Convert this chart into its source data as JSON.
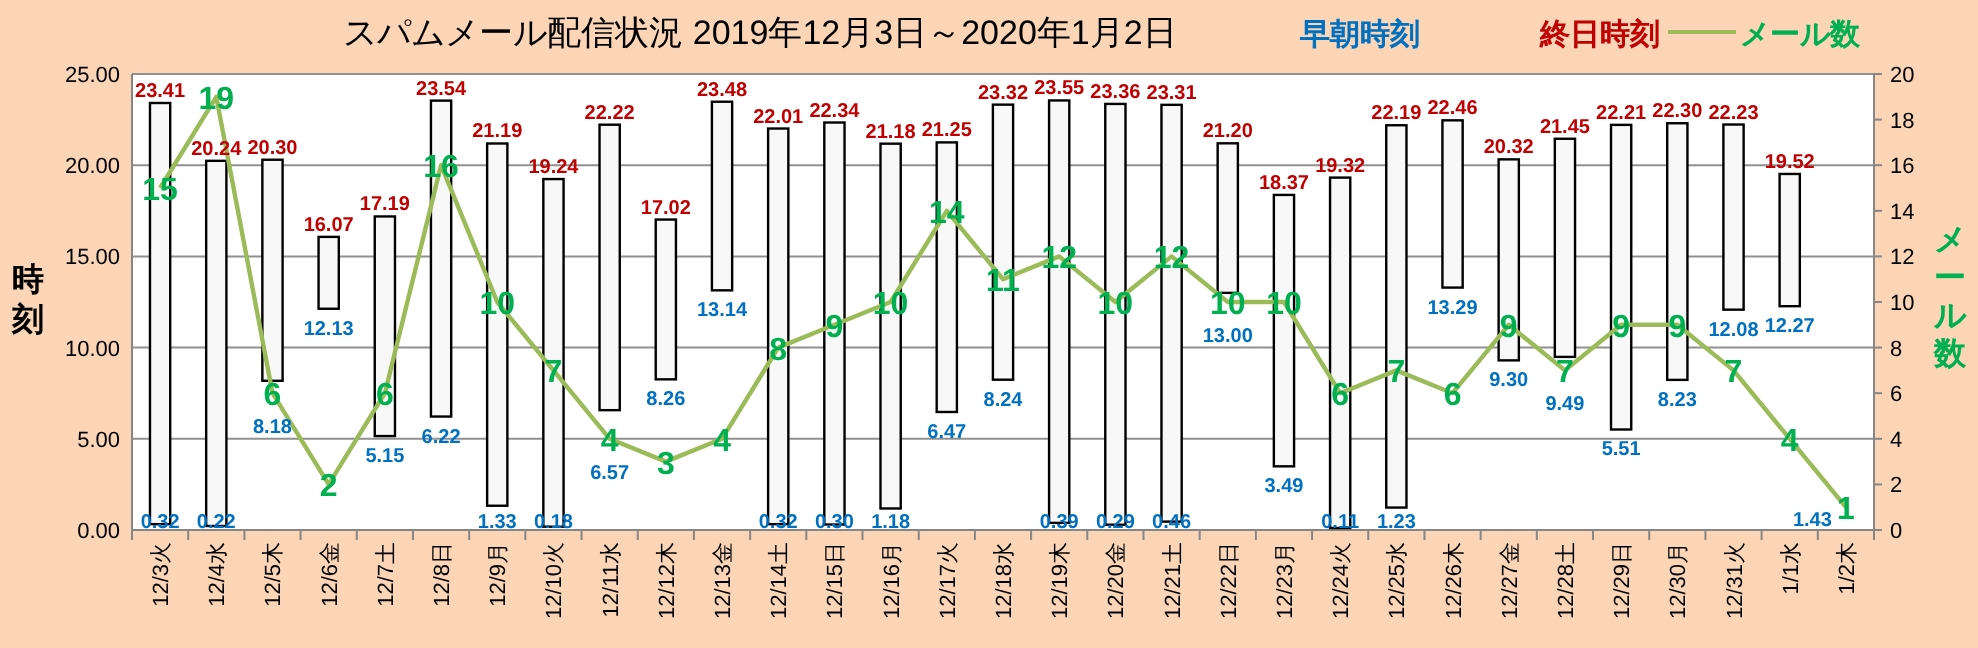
{
  "chart_data": {
    "type": "bar",
    "title": "スパムメール配信状況  2019年12月3日～2020年1月2日",
    "ylabel": "時刻",
    "y2label": "メール数",
    "categories": [
      "12/3火",
      "12/4水",
      "12/5木",
      "12/6金",
      "12/7土",
      "12/8日",
      "12/9月",
      "12/10火",
      "12/11水",
      "12/12木",
      "12/13金",
      "12/14土",
      "12/15日",
      "12/16月",
      "12/17火",
      "12/18水",
      "12/19木",
      "12/20金",
      "12/21土",
      "12/22日",
      "12/23月",
      "12/24火",
      "12/25水",
      "12/26木",
      "12/27金",
      "12/28土",
      "12/29日",
      "12/30月",
      "12/31火",
      "1/1水",
      "1/2木"
    ],
    "series": [
      {
        "color": "#f8f8f8",
        "base": [
          0.32,
          0.22,
          8.18,
          12.13,
          5.15,
          6.22,
          1.33,
          0.18,
          6.57,
          8.26,
          13.14,
          0.32,
          0.3,
          1.18,
          6.47,
          8.24,
          0.39,
          0.29,
          0.46,
          13.0,
          3.49,
          0.11,
          1.23,
          13.29,
          9.3,
          9.49,
          5.51,
          8.23,
          12.08,
          12.27,
          null
        ],
        "values": [
          23.09,
          20.02,
          12.12,
          3.94,
          12.04,
          17.32,
          19.86,
          19.06,
          15.65,
          8.76,
          10.34,
          21.69,
          22.04,
          20.0,
          14.78,
          15.08,
          23.16,
          23.07,
          22.85,
          8.2,
          14.88,
          19.21,
          20.96,
          9.17,
          11.02,
          11.96,
          16.7,
          14.07,
          10.15,
          7.25,
          null
        ]
      },
      {
        "type": "line",
        "name": "メール数",
        "color": "#9bbb59",
        "axis": "y2",
        "values": [
          15,
          19,
          6,
          2,
          6,
          16,
          10,
          7,
          4,
          3,
          4,
          8,
          9,
          10,
          14,
          11,
          12,
          10,
          12,
          10,
          10,
          6,
          7,
          6,
          9,
          7,
          9,
          9,
          7,
          4,
          1
        ],
        "data_labels": true
      }
    ],
    "annotations": [
      "早朝時刻",
      "終日時刻",
      {
        "text": "0.32",
        "x": "12/3火",
        "y": 0.32
      },
      {
        "text": "0.22",
        "x": "12/4水",
        "y": 0.22
      },
      {
        "text": "8.18",
        "x": "12/5木",
        "y": 8.18
      },
      {
        "text": "12.13",
        "x": "12/6金",
        "y": 12.13
      },
      {
        "text": "5.15",
        "x": "12/7土",
        "y": 5.15
      },
      {
        "text": "6.22",
        "x": "12/8日",
        "y": 6.22
      },
      {
        "text": "1.33",
        "x": "12/9月",
        "y": 1.33
      },
      {
        "text": "0.18",
        "x": "12/10火",
        "y": 0.18
      },
      {
        "text": "6.57",
        "x": "12/11水",
        "y": 6.57
      },
      {
        "text": "8.26",
        "x": "12/12木",
        "y": 8.26
      },
      {
        "text": "13.14",
        "x": "12/13金",
        "y": 13.14
      },
      {
        "text": "0.32",
        "x": "12/14土",
        "y": 0.32
      },
      {
        "text": "0.30",
        "x": "12/15日",
        "y": 0.3
      },
      {
        "text": "1.18",
        "x": "12/16月",
        "y": 1.18
      },
      {
        "text": "6.47",
        "x": "12/17火",
        "y": 6.47
      },
      {
        "text": "8.24",
        "x": "12/18水",
        "y": 8.24
      },
      {
        "text": "0.39",
        "x": "12/19木",
        "y": 0.39
      },
      {
        "text": "0.29",
        "x": "12/20金",
        "y": 0.29
      },
      {
        "text": "0.46",
        "x": "12/21土",
        "y": 0.46
      },
      {
        "text": "13.00",
        "x": "12/22日",
        "y": 13.0
      },
      {
        "text": "3.49",
        "x": "12/23月",
        "y": 3.49
      },
      {
        "text": "0.11",
        "x": "12/24火",
        "y": 0.11
      },
      {
        "text": "1.23",
        "x": "12/25水",
        "y": 1.23
      },
      {
        "text": "13.29",
        "x": "12/26木",
        "y": 13.29
      },
      {
        "text": "9.30",
        "x": "12/27金",
        "y": 9.3
      },
      {
        "text": "9.49",
        "x": "12/28土",
        "y": 9.49
      },
      {
        "text": "5.51",
        "x": "12/29日",
        "y": 5.51
      },
      {
        "text": "8.23",
        "x": "12/30月",
        "y": 8.23
      },
      {
        "text": "12.08",
        "x": "12/31火",
        "y": 12.08
      },
      {
        "text": "12.27",
        "x": "1/1水",
        "y": 12.27
      },
      {
        "text": "1.43",
        "x": "1/2木",
        "y": 1.43
      },
      {
        "text": "23.41",
        "x": "12/3火",
        "y": 23.41
      },
      {
        "text": "20.24",
        "x": "12/4水",
        "y": 20.24
      },
      {
        "text": "20.30",
        "x": "12/5木",
        "y": 20.3
      },
      {
        "text": "16.07",
        "x": "12/6金",
        "y": 16.07
      },
      {
        "text": "17.19",
        "x": "12/7土",
        "y": 17.19
      },
      {
        "text": "23.54",
        "x": "12/8日",
        "y": 23.54
      },
      {
        "text": "21.19",
        "x": "12/9月",
        "y": 21.19
      },
      {
        "text": "19.24",
        "x": "12/10火",
        "y": 19.24
      },
      {
        "text": "22.22",
        "x": "12/11水",
        "y": 22.22
      },
      {
        "text": "17.02",
        "x": "12/12木",
        "y": 17.02
      },
      {
        "text": "23.48",
        "x": "12/13金",
        "y": 23.48
      },
      {
        "text": "22.01",
        "x": "12/14土",
        "y": 22.01
      },
      {
        "text": "22.34",
        "x": "12/15日",
        "y": 22.34
      },
      {
        "text": "21.18",
        "x": "12/16月",
        "y": 21.18
      },
      {
        "text": "21.25",
        "x": "12/17火",
        "y": 21.25
      },
      {
        "text": "23.32",
        "x": "12/18水",
        "y": 23.32
      },
      {
        "text": "23.55",
        "x": "12/19木",
        "y": 23.55
      },
      {
        "text": "23.36",
        "x": "12/20金",
        "y": 23.36
      },
      {
        "text": "23.31",
        "x": "12/21土",
        "y": 23.31
      },
      {
        "text": "21.20",
        "x": "12/22日",
        "y": 21.2
      },
      {
        "text": "18.37",
        "x": "12/23月",
        "y": 18.37
      },
      {
        "text": "19.32",
        "x": "12/24火",
        "y": 19.32
      },
      {
        "text": "22.19",
        "x": "12/25水",
        "y": 22.19
      },
      {
        "text": "22.46",
        "x": "12/26木",
        "y": 22.46
      },
      {
        "text": "20.32",
        "x": "12/27金",
        "y": 20.32
      },
      {
        "text": "21.45",
        "x": "12/28土",
        "y": 21.45
      },
      {
        "text": "22.21",
        "x": "12/29日",
        "y": 22.21
      },
      {
        "text": "22.30",
        "x": "12/30月",
        "y": 22.3
      },
      {
        "text": "22.23",
        "x": "12/31火",
        "y": 22.23
      },
      {
        "text": "19.52",
        "x": "1/1水",
        "y": 19.52
      }
    ],
    "ylim": [
      0,
      25
    ],
    "yticks": [
      {
        "value": 0,
        "label": "0.00"
      },
      {
        "value": 5,
        "label": "5.00"
      },
      {
        "value": 10,
        "label": "10.00"
      },
      {
        "value": 15,
        "label": "15.00"
      },
      {
        "value": 20,
        "label": "20.00"
      },
      {
        "value": 25,
        "label": "25.00"
      }
    ],
    "y2lim": [
      0,
      20
    ],
    "y2ticks": [
      0,
      2,
      4,
      6,
      8,
      10,
      12,
      14,
      16,
      18,
      20
    ],
    "grid": "y",
    "legend": "top right"
  }
}
